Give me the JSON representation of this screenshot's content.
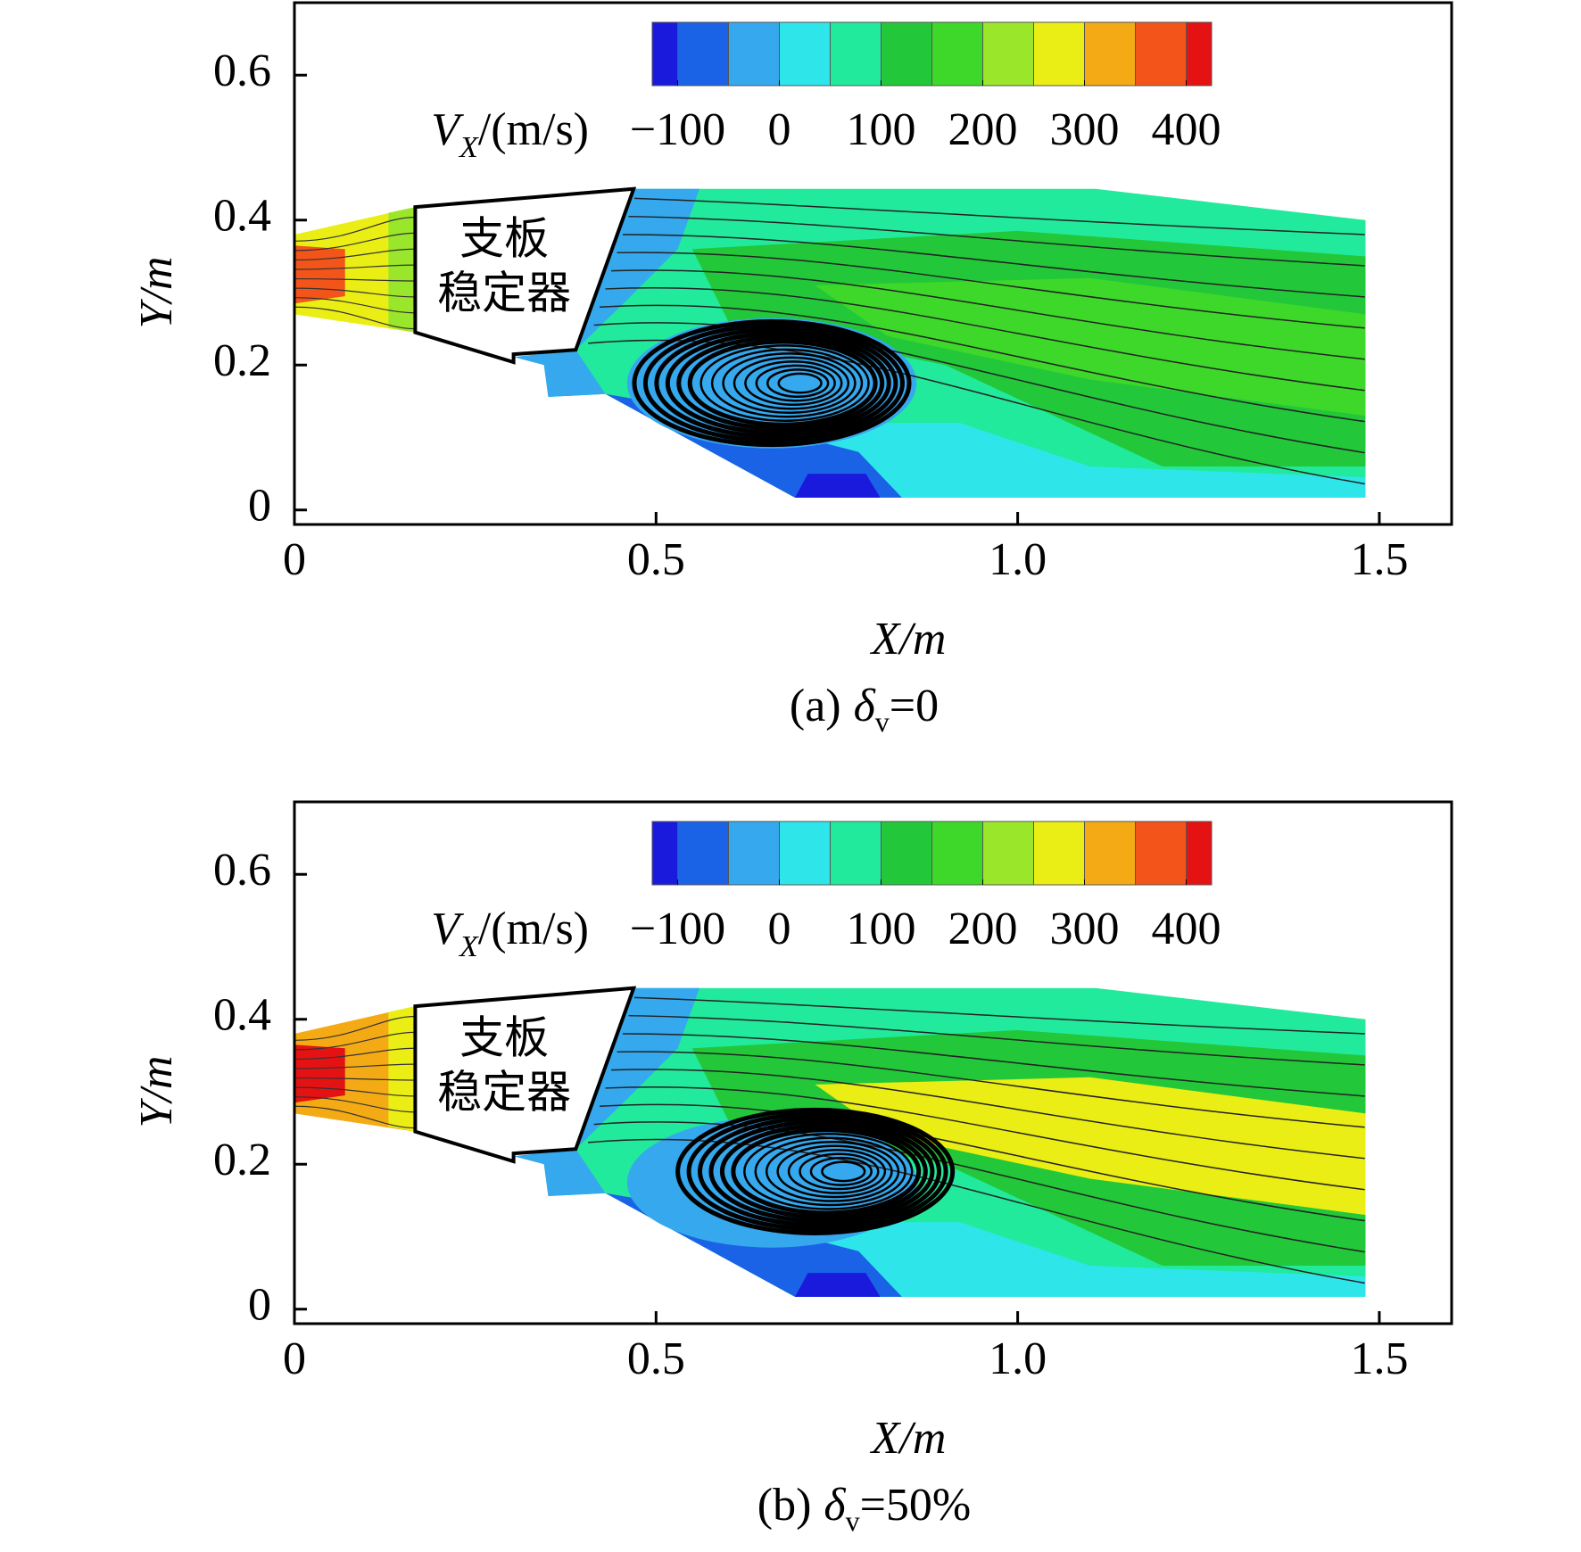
{
  "chart_data": [
    {
      "type": "contour",
      "xlabel": "X/m",
      "ylabel": "Y/m",
      "xlim": [
        0,
        1.6
      ],
      "ylim": [
        -0.02,
        0.7
      ],
      "xticks": [
        0,
        0.5,
        {
          "value": 1,
          "label": "1.0"
        },
        1.5
      ],
      "yticks": [
        0,
        0.2,
        0.4,
        0.6
      ],
      "colorbar": {
        "symbol": "V",
        "subscript": "X",
        "unit": "/(m/s)",
        "lim": [
          -125,
          425
        ],
        "levels": [
          -100,
          -50,
          0,
          50,
          100,
          150,
          200,
          250,
          300,
          350,
          400
        ],
        "colors": [
          "#1a1adc",
          "#1a63e6",
          "#35a8ee",
          "#2ee6ea",
          "#22ea9c",
          "#22c83a",
          "#3ed82a",
          "#9ae62a",
          "#eaee14",
          "#f4aa14",
          "#f2541a",
          "#e41212"
        ],
        "ticks": [
          {
            "value": -100,
            "label": "−100"
          },
          0,
          100,
          200,
          300,
          400
        ]
      },
      "annotation": [
        "支板",
        "稳定器"
      ],
      "caption": {
        "label": "(a)",
        "symbol": "δ",
        "subscript": "v",
        "value": "=0"
      },
      "values": [
        100,
        150,
        200,
        25,
        0,
        0,
        -75,
        -110,
        -25,
        300,
        370,
        250
      ]
    },
    {
      "type": "contour",
      "xlabel": "X/m",
      "ylabel": "Y/m",
      "xlim": [
        0,
        1.6
      ],
      "ylim": [
        -0.02,
        0.7
      ],
      "xticks": [
        0,
        0.5,
        {
          "value": 1,
          "label": "1.0"
        },
        1.5
      ],
      "yticks": [
        0,
        0.2,
        0.4,
        0.6
      ],
      "colorbar": {
        "symbol": "V",
        "subscript": "X",
        "unit": "/(m/s)",
        "lim": [
          -125,
          425
        ],
        "levels": [
          -100,
          -50,
          0,
          50,
          100,
          150,
          200,
          250,
          300,
          350,
          400
        ],
        "colors": [
          "#1a1adc",
          "#1a63e6",
          "#35a8ee",
          "#2ee6ea",
          "#22ea9c",
          "#22c83a",
          "#3ed82a",
          "#9ae62a",
          "#eaee14",
          "#f4aa14",
          "#f2541a",
          "#e41212"
        ],
        "ticks": [
          {
            "value": -100,
            "label": "−100"
          },
          0,
          100,
          200,
          300,
          400
        ]
      },
      "annotation": [
        "支板",
        "稳定器"
      ],
      "caption": {
        "label": "(b)",
        "symbol": "δ",
        "subscript": "v",
        "value": "=50%"
      },
      "values": [
        100,
        150,
        260,
        25,
        0,
        0,
        -75,
        -110,
        -25,
        330,
        410,
        260
      ]
    }
  ]
}
